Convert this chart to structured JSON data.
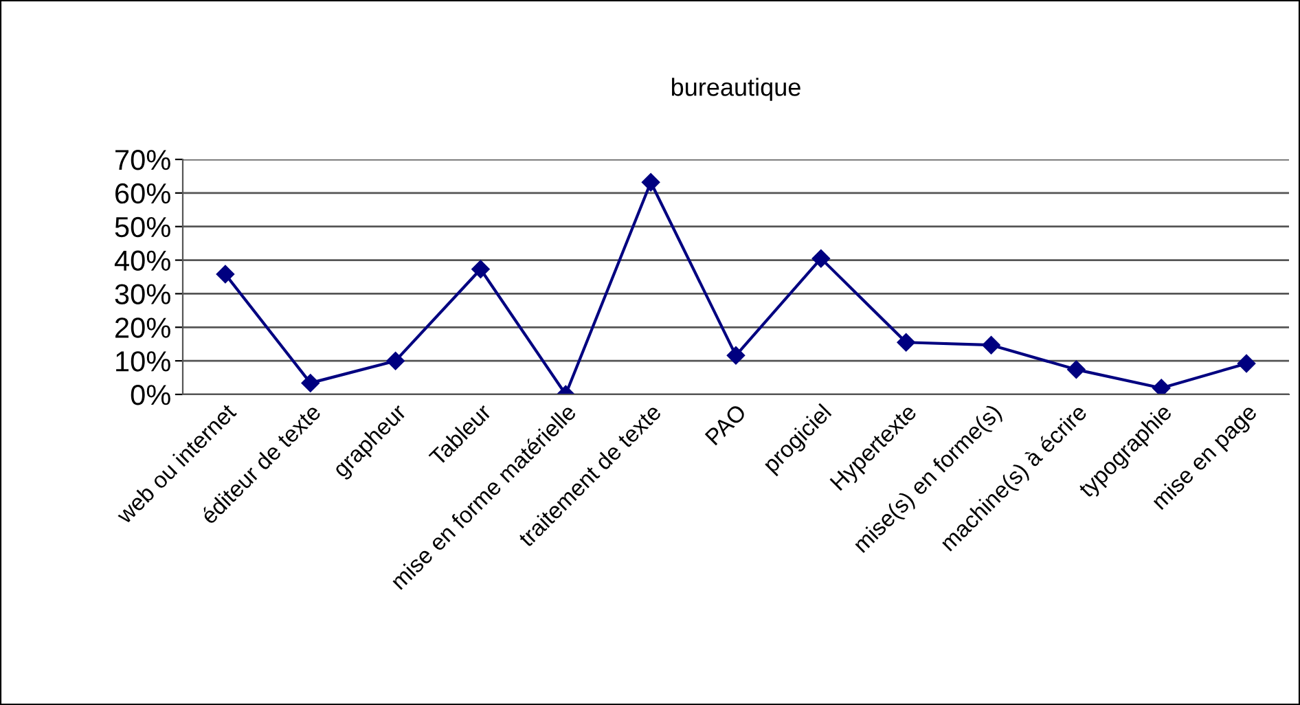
{
  "chart_data": {
    "type": "line",
    "title": "bureautique",
    "categories": [
      "web ou internet",
      "éditeur de texte",
      "grapheur",
      "Tableur",
      "mise en forme matérielle",
      "traitement de texte",
      "PAO",
      "progiciel",
      "Hypertexte",
      "mise(s) en forme(s)",
      "machine(s) à écrire",
      "typographie",
      "mise en page"
    ],
    "series": [
      {
        "color": "#000080",
        "values": [
          35.8,
          3.4,
          10,
          37.3,
          0,
          63.2,
          11.6,
          40.5,
          15.5,
          14.7,
          7.4,
          1.9,
          9.2
        ]
      }
    ],
    "ylim": [
      0,
      70
    ],
    "yticks": [
      {
        "value": 0,
        "label": "0%"
      },
      {
        "value": 10,
        "label": "10%"
      },
      {
        "value": 20,
        "label": "20%"
      },
      {
        "value": 30,
        "label": "30%"
      },
      {
        "value": 40,
        "label": "40%"
      },
      {
        "value": 50,
        "label": "50%"
      },
      {
        "value": 60,
        "label": "60%"
      },
      {
        "value": 70,
        "label": "70%"
      }
    ],
    "grid": "y",
    "marker": "diamond",
    "line_style": "solid",
    "legend": false
  }
}
